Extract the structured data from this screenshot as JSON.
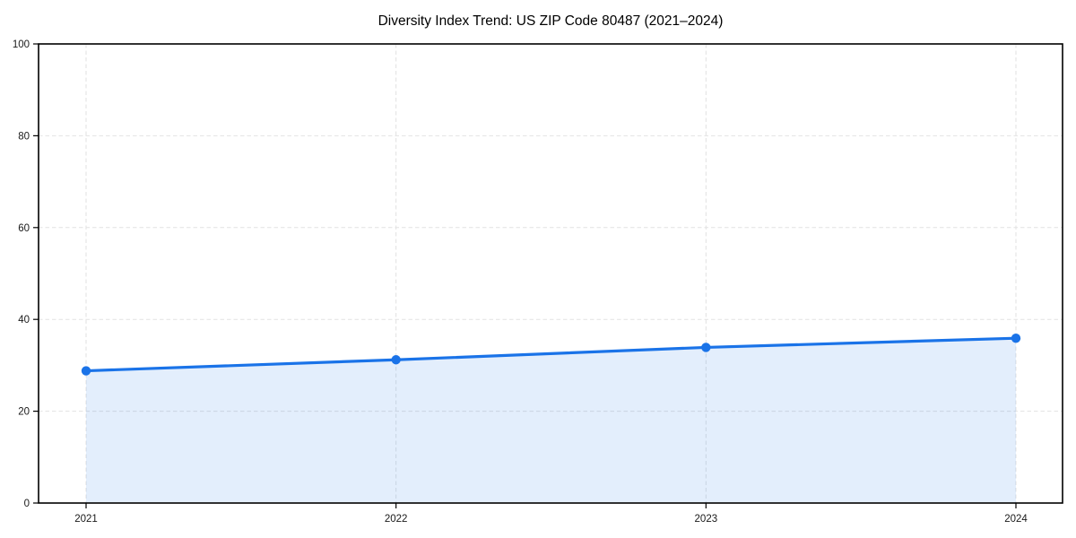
{
  "chart_data": {
    "type": "line",
    "title": "Diversity Index Trend: US ZIP Code 80487 (2021–2024)",
    "x": [
      "2021",
      "2022",
      "2023",
      "2024"
    ],
    "series": [
      {
        "name": "Diversity Index",
        "values": [
          28.8,
          31.2,
          33.9,
          35.9
        ]
      }
    ],
    "xlabel": "",
    "ylabel": "",
    "ylim": [
      0,
      100
    ],
    "yticks": [
      0,
      20,
      40,
      60,
      80,
      100
    ],
    "ytick_labels": [
      "0",
      "20",
      "40",
      "60",
      "80",
      "100"
    ],
    "grid": "dashed, horizontal at y-ticks and vertical at each year",
    "legend_position": "none",
    "area_fill": true,
    "marker": "circle",
    "colors": {
      "line": "#1a73e8",
      "marker": "#1a73e8",
      "area": "rgba(26,115,232,0.12)",
      "grid": "#e2e2e2",
      "spine": "#000000",
      "title_text": "#000000",
      "tick_text": "#191919"
    }
  }
}
